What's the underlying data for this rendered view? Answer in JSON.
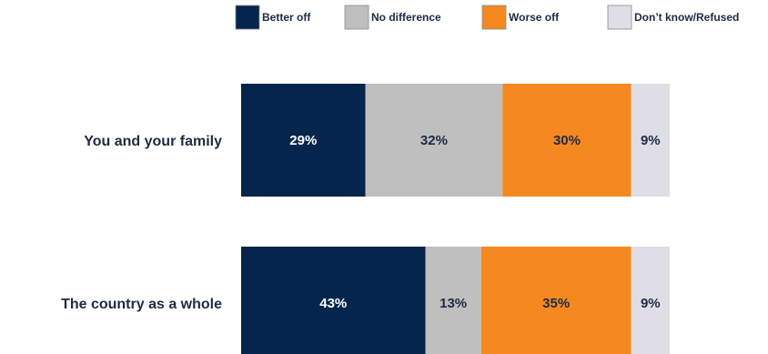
{
  "chart_data": {
    "type": "bar",
    "orientation": "horizontal",
    "stacked": true,
    "categories": [
      "You and your family",
      "The country as a whole"
    ],
    "series": [
      {
        "name": "Better off",
        "values": [
          29,
          43
        ],
        "color": "#06254d",
        "label_color": "#ffffff"
      },
      {
        "name": "No difference",
        "values": [
          32,
          13
        ],
        "color": "#bfbfbf",
        "label_color": "#1f2a44"
      },
      {
        "name": "Worse off",
        "values": [
          30,
          35
        ],
        "color": "#f5891f",
        "label_color": "#1f2a44"
      },
      {
        "name": "Don’t know/Refused",
        "values": [
          9,
          9
        ],
        "color": "#dfdee6",
        "label_color": "#1f2a44"
      }
    ],
    "value_suffix": "%",
    "xlim": [
      0,
      100
    ],
    "legend": "top",
    "grid": false
  }
}
